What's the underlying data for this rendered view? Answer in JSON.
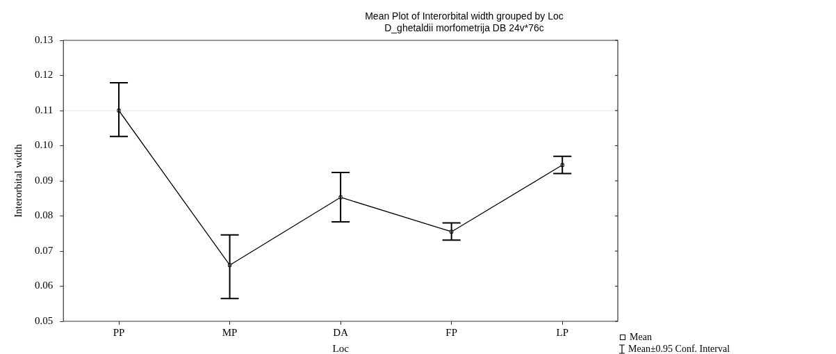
{
  "chart_data": {
    "type": "line",
    "title": "Mean Plot of Interorbital width grouped by Loc",
    "subtitle": "D_ghetaldii morfometrija DB 24v*76c",
    "xlabel": "Loc",
    "ylabel": "Interorbital width",
    "categories": [
      "PP",
      "MP",
      "DA",
      "FP",
      "LP"
    ],
    "series": [
      {
        "name": "Mean",
        "color": "#000000",
        "values": [
          0.11,
          0.066,
          0.0853,
          0.0755,
          0.0945
        ],
        "errors": [
          [
            0.1026,
            0.1179
          ],
          [
            0.0565,
            0.0746
          ],
          [
            0.0783,
            0.0924
          ],
          [
            0.0731,
            0.078
          ],
          [
            0.0921,
            0.097
          ]
        ]
      }
    ],
    "ylim": [
      0.05,
      0.13
    ],
    "yticks": [
      0.05,
      0.06,
      0.07,
      0.08,
      0.09,
      {
        "value": 0.1,
        "label": "0.10"
      },
      0.11,
      0.12,
      0.13
    ],
    "ref_lines": [
      {
        "axis": "y",
        "value": 0.11,
        "color": "#ececec"
      }
    ],
    "annotations": [
      "Mean±0.95 Conf. Interval"
    ],
    "grid": false,
    "legend": "bottom right",
    "marker": "square",
    "line_style": "solid"
  }
}
